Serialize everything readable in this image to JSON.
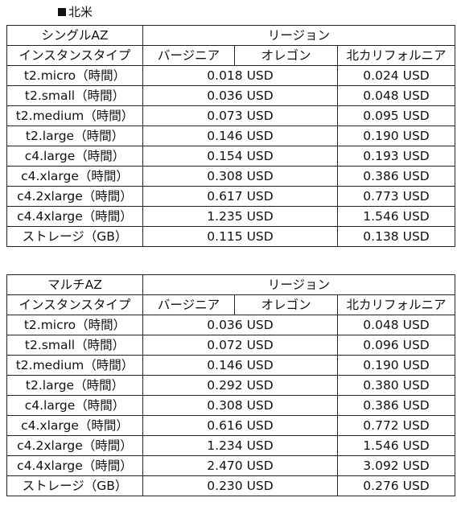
{
  "heading": "北米",
  "tables": [
    {
      "id": "single",
      "title": "シングルAZ",
      "region_header": "リージョン",
      "col_headers": [
        "インスタンスタイプ",
        "バージニア",
        "オレゴン",
        "北カリフォルニア"
      ],
      "rows": [
        {
          "type": "t2.micro（時間）",
          "us": "0.018 USD",
          "ncal": "0.024 USD"
        },
        {
          "type": "t2.small（時間）",
          "us": "0.036 USD",
          "ncal": "0.048 USD"
        },
        {
          "type": "t2.medium（時間）",
          "us": "0.073 USD",
          "ncal": "0.095 USD"
        },
        {
          "type": "t2.large（時間）",
          "us": "0.146 USD",
          "ncal": "0.190 USD"
        },
        {
          "type": "c4.large（時間）",
          "us": "0.154 USD",
          "ncal": "0.193 USD"
        },
        {
          "type": "c4.xlarge（時間）",
          "us": "0.308 USD",
          "ncal": "0.386 USD"
        },
        {
          "type": "c4.2xlarge（時間）",
          "us": "0.617 USD",
          "ncal": "0.773 USD"
        },
        {
          "type": "c4.4xlarge（時間）",
          "us": "1.235 USD",
          "ncal": "1.546 USD"
        },
        {
          "type": "ストレージ（GB）",
          "us": "0.115 USD",
          "ncal": "0.138 USD"
        }
      ]
    },
    {
      "id": "multi",
      "title": "マルチAZ",
      "region_header": "リージョン",
      "col_headers": [
        "インスタンスタイプ",
        "バージニア",
        "オレゴン",
        "北カリフォルニア"
      ],
      "rows": [
        {
          "type": "t2.micro（時間）",
          "us": "0.036 USD",
          "ncal": "0.048 USD"
        },
        {
          "type": "t2.small（時間）",
          "us": "0.072 USD",
          "ncal": "0.096 USD"
        },
        {
          "type": "t2.medium（時間）",
          "us": "0.146 USD",
          "ncal": "0.190 USD"
        },
        {
          "type": "t2.large（時間）",
          "us": "0.292 USD",
          "ncal": "0.380 USD"
        },
        {
          "type": "c4.large（時間）",
          "us": "0.308 USD",
          "ncal": "0.386 USD"
        },
        {
          "type": "c4.xlarge（時間）",
          "us": "0.616 USD",
          "ncal": "0.772 USD"
        },
        {
          "type": "c4.2xlarge（時間）",
          "us": "1.234 USD",
          "ncal": "1.546 USD"
        },
        {
          "type": "c4.4xlarge（時間）",
          "us": "2.470 USD",
          "ncal": "3.092 USD"
        },
        {
          "type": "ストレージ（GB）",
          "us": "0.230 USD",
          "ncal": "0.276 USD"
        }
      ]
    }
  ]
}
